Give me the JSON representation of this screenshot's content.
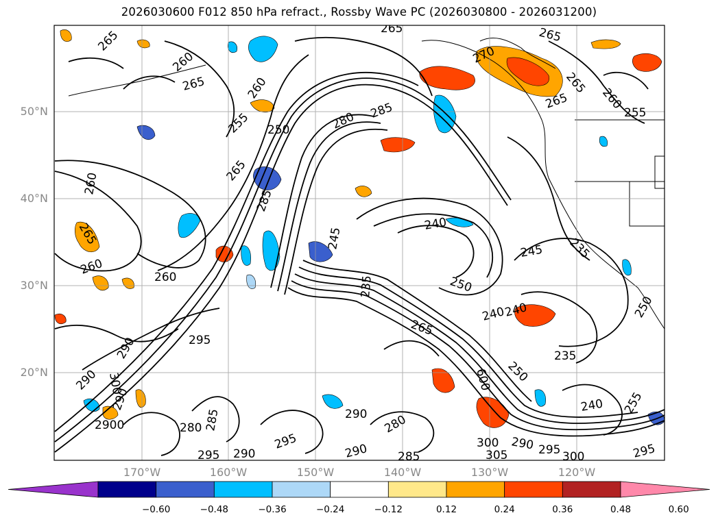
{
  "title": "2026030600 F012 850 hPa refract., Rossby Wave PC (2026030800 - 2026031200)",
  "lat_labels": [
    "50°N",
    "40°N",
    "30°N",
    "20°N"
  ],
  "lon_labels": [
    "170°W",
    "160°W",
    "150°W",
    "140°W",
    "130°W",
    "120°W"
  ],
  "colorbar": {
    "colors": [
      "#9933cc",
      "#00008b",
      "#3a5fcd",
      "#00bfff",
      "#add8f7",
      "#ffffff",
      "#ffe88a",
      "#ffa500",
      "#ff4500",
      "#b22222",
      "#ff88aa"
    ],
    "labels": [
      "−0.60",
      "−0.48",
      "−0.36",
      "−0.24",
      "−0.12",
      "0.12",
      "0.24",
      "0.36",
      "0.48",
      "0.60"
    ]
  },
  "contour_labels": [
    "265",
    "265",
    "265",
    "260",
    "265",
    "270",
    "265",
    "260",
    "265",
    "255",
    "260",
    "255",
    "250",
    "280",
    "285",
    "265",
    "260",
    "240",
    "245",
    "265",
    "260",
    "250",
    "260",
    "30",
    "235",
    "250",
    "245",
    "240",
    "240",
    "235",
    "265",
    "295",
    "290",
    "600",
    "250",
    "300",
    "290",
    "255",
    "240",
    "290",
    "280",
    "285",
    "295",
    "290",
    "295",
    "290",
    "300",
    "305",
    "285",
    "295",
    "250",
    "30",
    "290"
  ]
}
